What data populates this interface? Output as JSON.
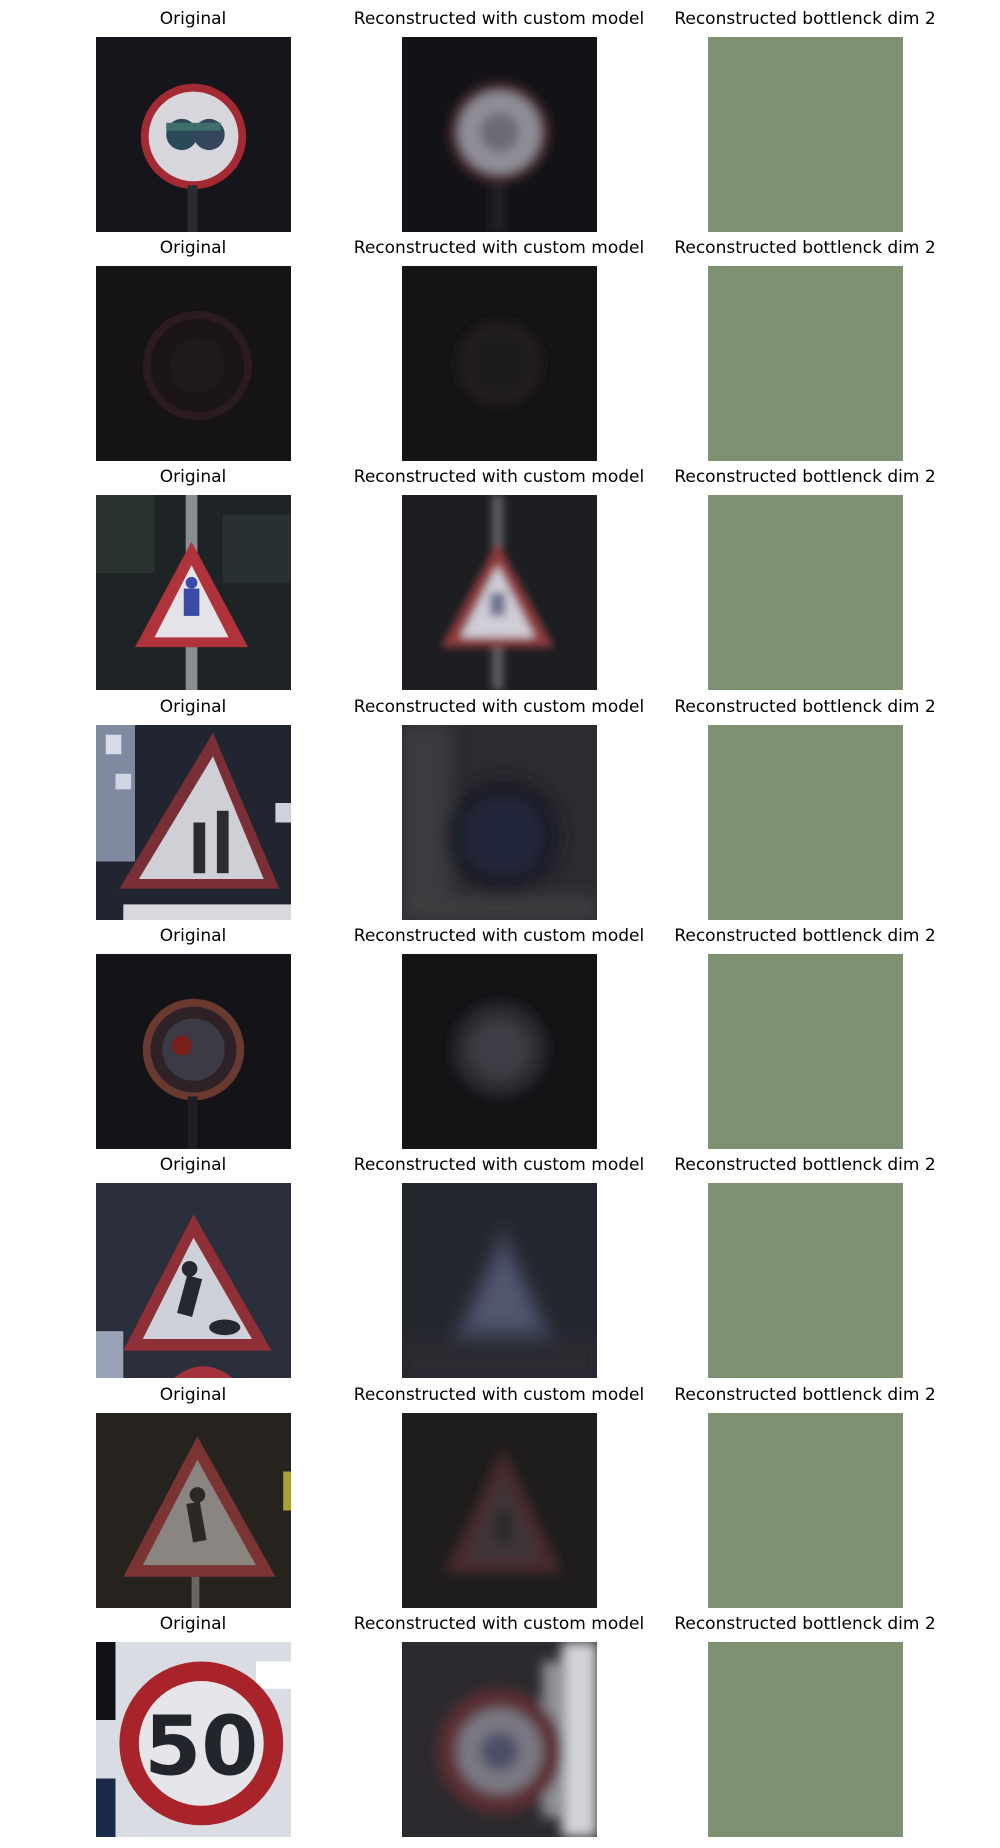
{
  "figure": {
    "column_titles": [
      "Original",
      "Reconstructed with custom model",
      "Reconstructed bottlenck dim 2"
    ],
    "rows": [
      {
        "original": "speed-limit-sign",
        "reconstructed_custom": "blurred-round-sign",
        "reconstructed_dim2": "flat-green"
      },
      {
        "original": "dark-speed-limit-sign",
        "reconstructed_custom": "blurred-dark-round-sign",
        "reconstructed_dim2": "flat-green"
      },
      {
        "original": "pedestrian-warning-triangle",
        "reconstructed_custom": "blurred-warning-triangle",
        "reconstructed_dim2": "flat-green"
      },
      {
        "original": "road-narrows-triangle",
        "reconstructed_custom": "blurred-dark-blob",
        "reconstructed_dim2": "flat-green"
      },
      {
        "original": "dark-round-sign",
        "reconstructed_custom": "blurred-dark-round-sign",
        "reconstructed_dim2": "flat-green"
      },
      {
        "original": "roadworks-triangle",
        "reconstructed_custom": "blurred-triangle",
        "reconstructed_dim2": "flat-green"
      },
      {
        "original": "dark-pedestrian-triangle",
        "reconstructed_custom": "blurred-dark-triangle",
        "reconstructed_dim2": "flat-green"
      },
      {
        "original": "speed-limit-50",
        "reconstructed_custom": "blurred-speed-limit",
        "reconstructed_dim2": "flat-green"
      }
    ],
    "speed_limit_text": "50",
    "colors": {
      "flat_green": "#7e9170",
      "sign_red": "#a8242a",
      "sign_white": "#e6e6ea",
      "dark_bg": "#141318"
    }
  }
}
